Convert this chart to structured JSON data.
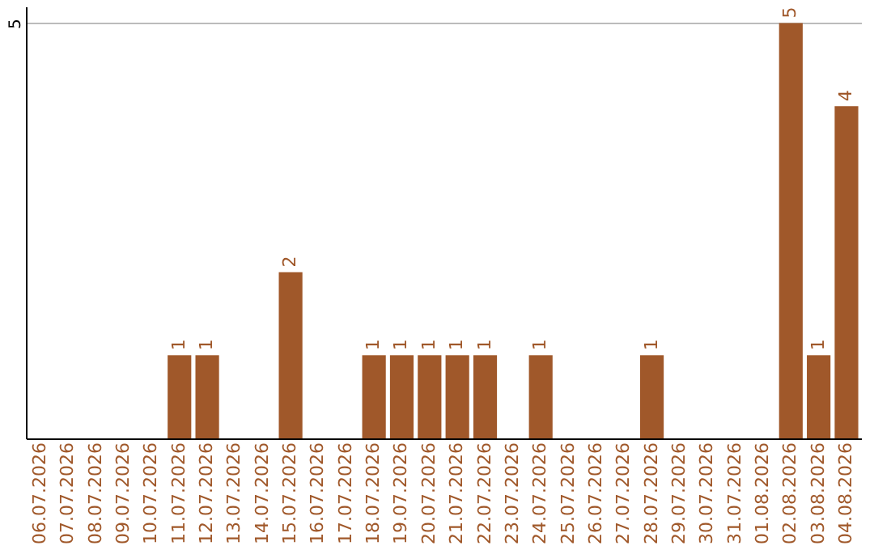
{
  "chart_data": {
    "type": "bar",
    "categories": [
      "06.07.2026",
      "07.07.2026",
      "08.07.2026",
      "09.07.2026",
      "10.07.2026",
      "11.07.2026",
      "12.07.2026",
      "13.07.2026",
      "14.07.2026",
      "15.07.2026",
      "16.07.2026",
      "17.07.2026",
      "18.07.2026",
      "19.07.2026",
      "20.07.2026",
      "21.07.2026",
      "22.07.2026",
      "23.07.2026",
      "24.07.2026",
      "25.07.2026",
      "26.07.2026",
      "27.07.2026",
      "28.07.2026",
      "29.07.2026",
      "30.07.2026",
      "31.07.2026",
      "01.08.2026",
      "02.08.2026",
      "03.08.2026",
      "04.08.2026"
    ],
    "values": [
      0,
      0,
      0,
      0,
      0,
      1,
      1,
      0,
      0,
      2,
      0,
      0,
      1,
      1,
      1,
      1,
      1,
      0,
      1,
      0,
      0,
      0,
      1,
      0,
      0,
      0,
      0,
      5,
      1,
      4
    ],
    "value_labels": [
      null,
      null,
      null,
      null,
      null,
      "1",
      "1",
      null,
      null,
      "2",
      null,
      null,
      "1",
      "1",
      "1",
      "1",
      "1",
      null,
      "1",
      null,
      null,
      null,
      "1",
      null,
      null,
      null,
      null,
      "5",
      "1",
      "4"
    ],
    "color": "#a0582a",
    "ylim": [
      0,
      5.2
    ],
    "yticks": [
      5
    ],
    "grid": "y"
  }
}
